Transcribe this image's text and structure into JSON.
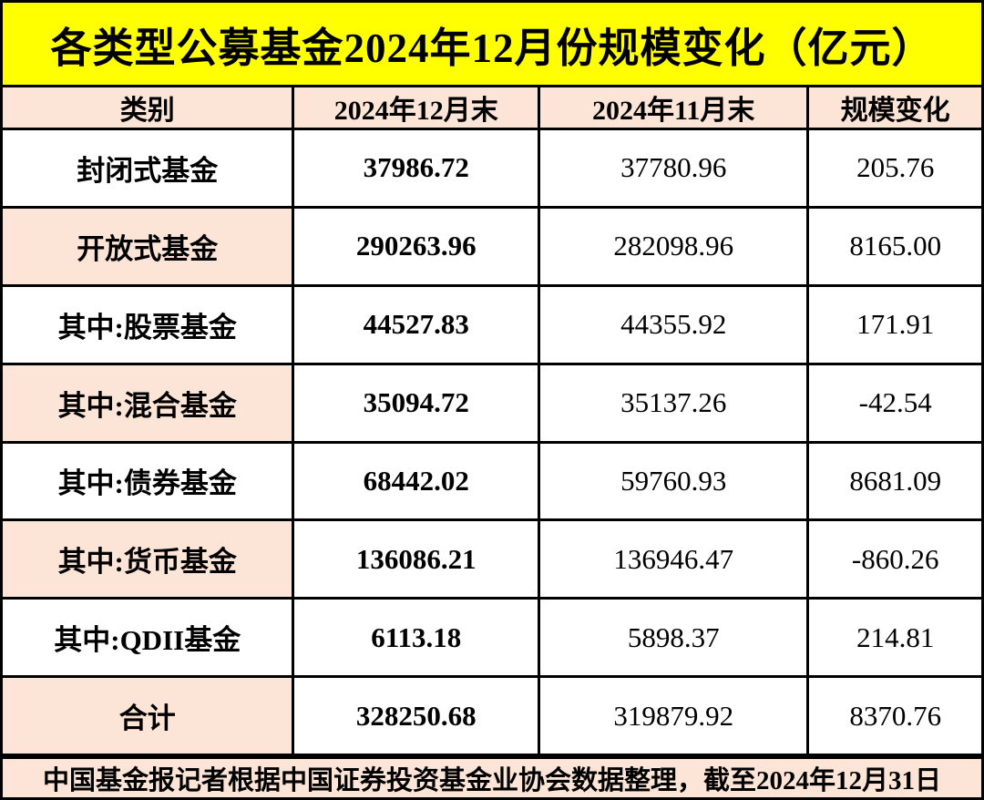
{
  "chart_data": {
    "type": "table",
    "title": "各类型公募基金2024年12月份规模变化（亿元）",
    "columns": [
      "类别",
      "2024年12月末",
      "2024年11月末",
      "规模变化"
    ],
    "rows": [
      {
        "category": "封闭式基金",
        "dec_2024": "37986.72",
        "nov_2024": "37780.96",
        "change": "205.76",
        "shaded": false
      },
      {
        "category": "开放式基金",
        "dec_2024": "290263.96",
        "nov_2024": "282098.96",
        "change": "8165.00",
        "shaded": true
      },
      {
        "category": "其中:股票基金",
        "dec_2024": "44527.83",
        "nov_2024": "44355.92",
        "change": "171.91",
        "shaded": false
      },
      {
        "category": "其中:混合基金",
        "dec_2024": "35094.72",
        "nov_2024": "35137.26",
        "change": "-42.54",
        "shaded": true
      },
      {
        "category": "其中:债券基金",
        "dec_2024": "68442.02",
        "nov_2024": "59760.93",
        "change": "8681.09",
        "shaded": false
      },
      {
        "category": "其中:货币基金",
        "dec_2024": "136086.21",
        "nov_2024": "136946.47",
        "change": "-860.26",
        "shaded": true
      },
      {
        "category": "其中:QDII基金",
        "dec_2024": "6113.18",
        "nov_2024": "5898.37",
        "change": "214.81",
        "shaded": false
      },
      {
        "category": "合计",
        "dec_2024": "328250.68",
        "nov_2024": "319879.92",
        "change": "8370.76",
        "shaded": true
      }
    ],
    "footnote": "中国基金报记者根据中国证券投资基金业协会数据整理，截至2024年12月31日"
  },
  "colors": {
    "title_bg": "#FFFF00",
    "title_text": "#000000",
    "shaded_bg": "#FCE4D6",
    "cell_bg": "#FFFFFF",
    "border": "#000000",
    "text": "#000000"
  }
}
